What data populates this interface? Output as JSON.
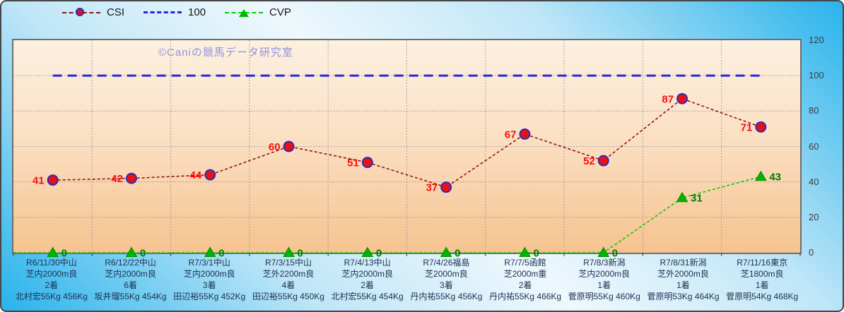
{
  "watermark": "©Caniの競馬データ研究室",
  "chart_data": {
    "type": "line",
    "title": "",
    "grid": true,
    "legend_position": "top-left",
    "ylim": [
      0,
      120
    ],
    "ytick_step": 20,
    "yticks": [
      0,
      20,
      40,
      60,
      80,
      100,
      120
    ],
    "categories": [
      [
        "R6/11/30中山",
        "芝内2000m良",
        "2着",
        "北村宏55Kg 456Kg"
      ],
      [
        "R6/12/22中山",
        "芝内2000m良",
        "6着",
        "坂井瑠55Kg 454Kg"
      ],
      [
        "R7/3/1中山",
        "芝内2000m良",
        "3着",
        "田辺裕55Kg 452Kg"
      ],
      [
        "R7/3/15中山",
        "芝外2200m良",
        "4着",
        "田辺裕55Kg 450Kg"
      ],
      [
        "R7/4/13中山",
        "芝内2000m良",
        "2着",
        "北村宏55Kg 454Kg"
      ],
      [
        "R7/4/26福島",
        "芝2000m良",
        "3着",
        "丹内祐55Kg 456Kg"
      ],
      [
        "R7/7/5函館",
        "芝2000m重",
        "2着",
        "丹内祐55Kg 466Kg"
      ],
      [
        "R7/8/3新潟",
        "芝内2000m良",
        "1着",
        "菅原明55Kg 460Kg"
      ],
      [
        "R7/8/31新潟",
        "芝外2000m良",
        "1着",
        "菅原明53Kg 464Kg"
      ],
      [
        "R7/11/16東京",
        "芝1800m良",
        "1着",
        "菅原明54Kg 468Kg"
      ]
    ],
    "series": [
      {
        "name": "CSI",
        "values": [
          41,
          42,
          44,
          60,
          51,
          37,
          67,
          52,
          87,
          71
        ],
        "color": "#8b1515",
        "width": 1.6,
        "dash": "4 3",
        "marker": "circle",
        "marker_fill": "#e81111",
        "marker_stroke": "#2828c8",
        "show_labels": true,
        "label_side": "left",
        "label_color": "#fb0d0d"
      },
      {
        "name": "100",
        "values": [
          100,
          100,
          100,
          100,
          100,
          100,
          100,
          100,
          100,
          100
        ],
        "color": "#2525e8",
        "width": 3,
        "dash": "13 8",
        "marker": "none",
        "show_labels": false
      },
      {
        "name": "CVP",
        "values": [
          0,
          0,
          0,
          0,
          0,
          0,
          0,
          0,
          31,
          43
        ],
        "color": "#00d000",
        "width": 1.6,
        "dash": "4 3",
        "marker": "triangle",
        "marker_fill": "#00b400",
        "marker_stroke": "#009000",
        "show_labels": true,
        "label_side": "right",
        "label_color": "#007c00",
        "extend_left": true
      }
    ]
  }
}
